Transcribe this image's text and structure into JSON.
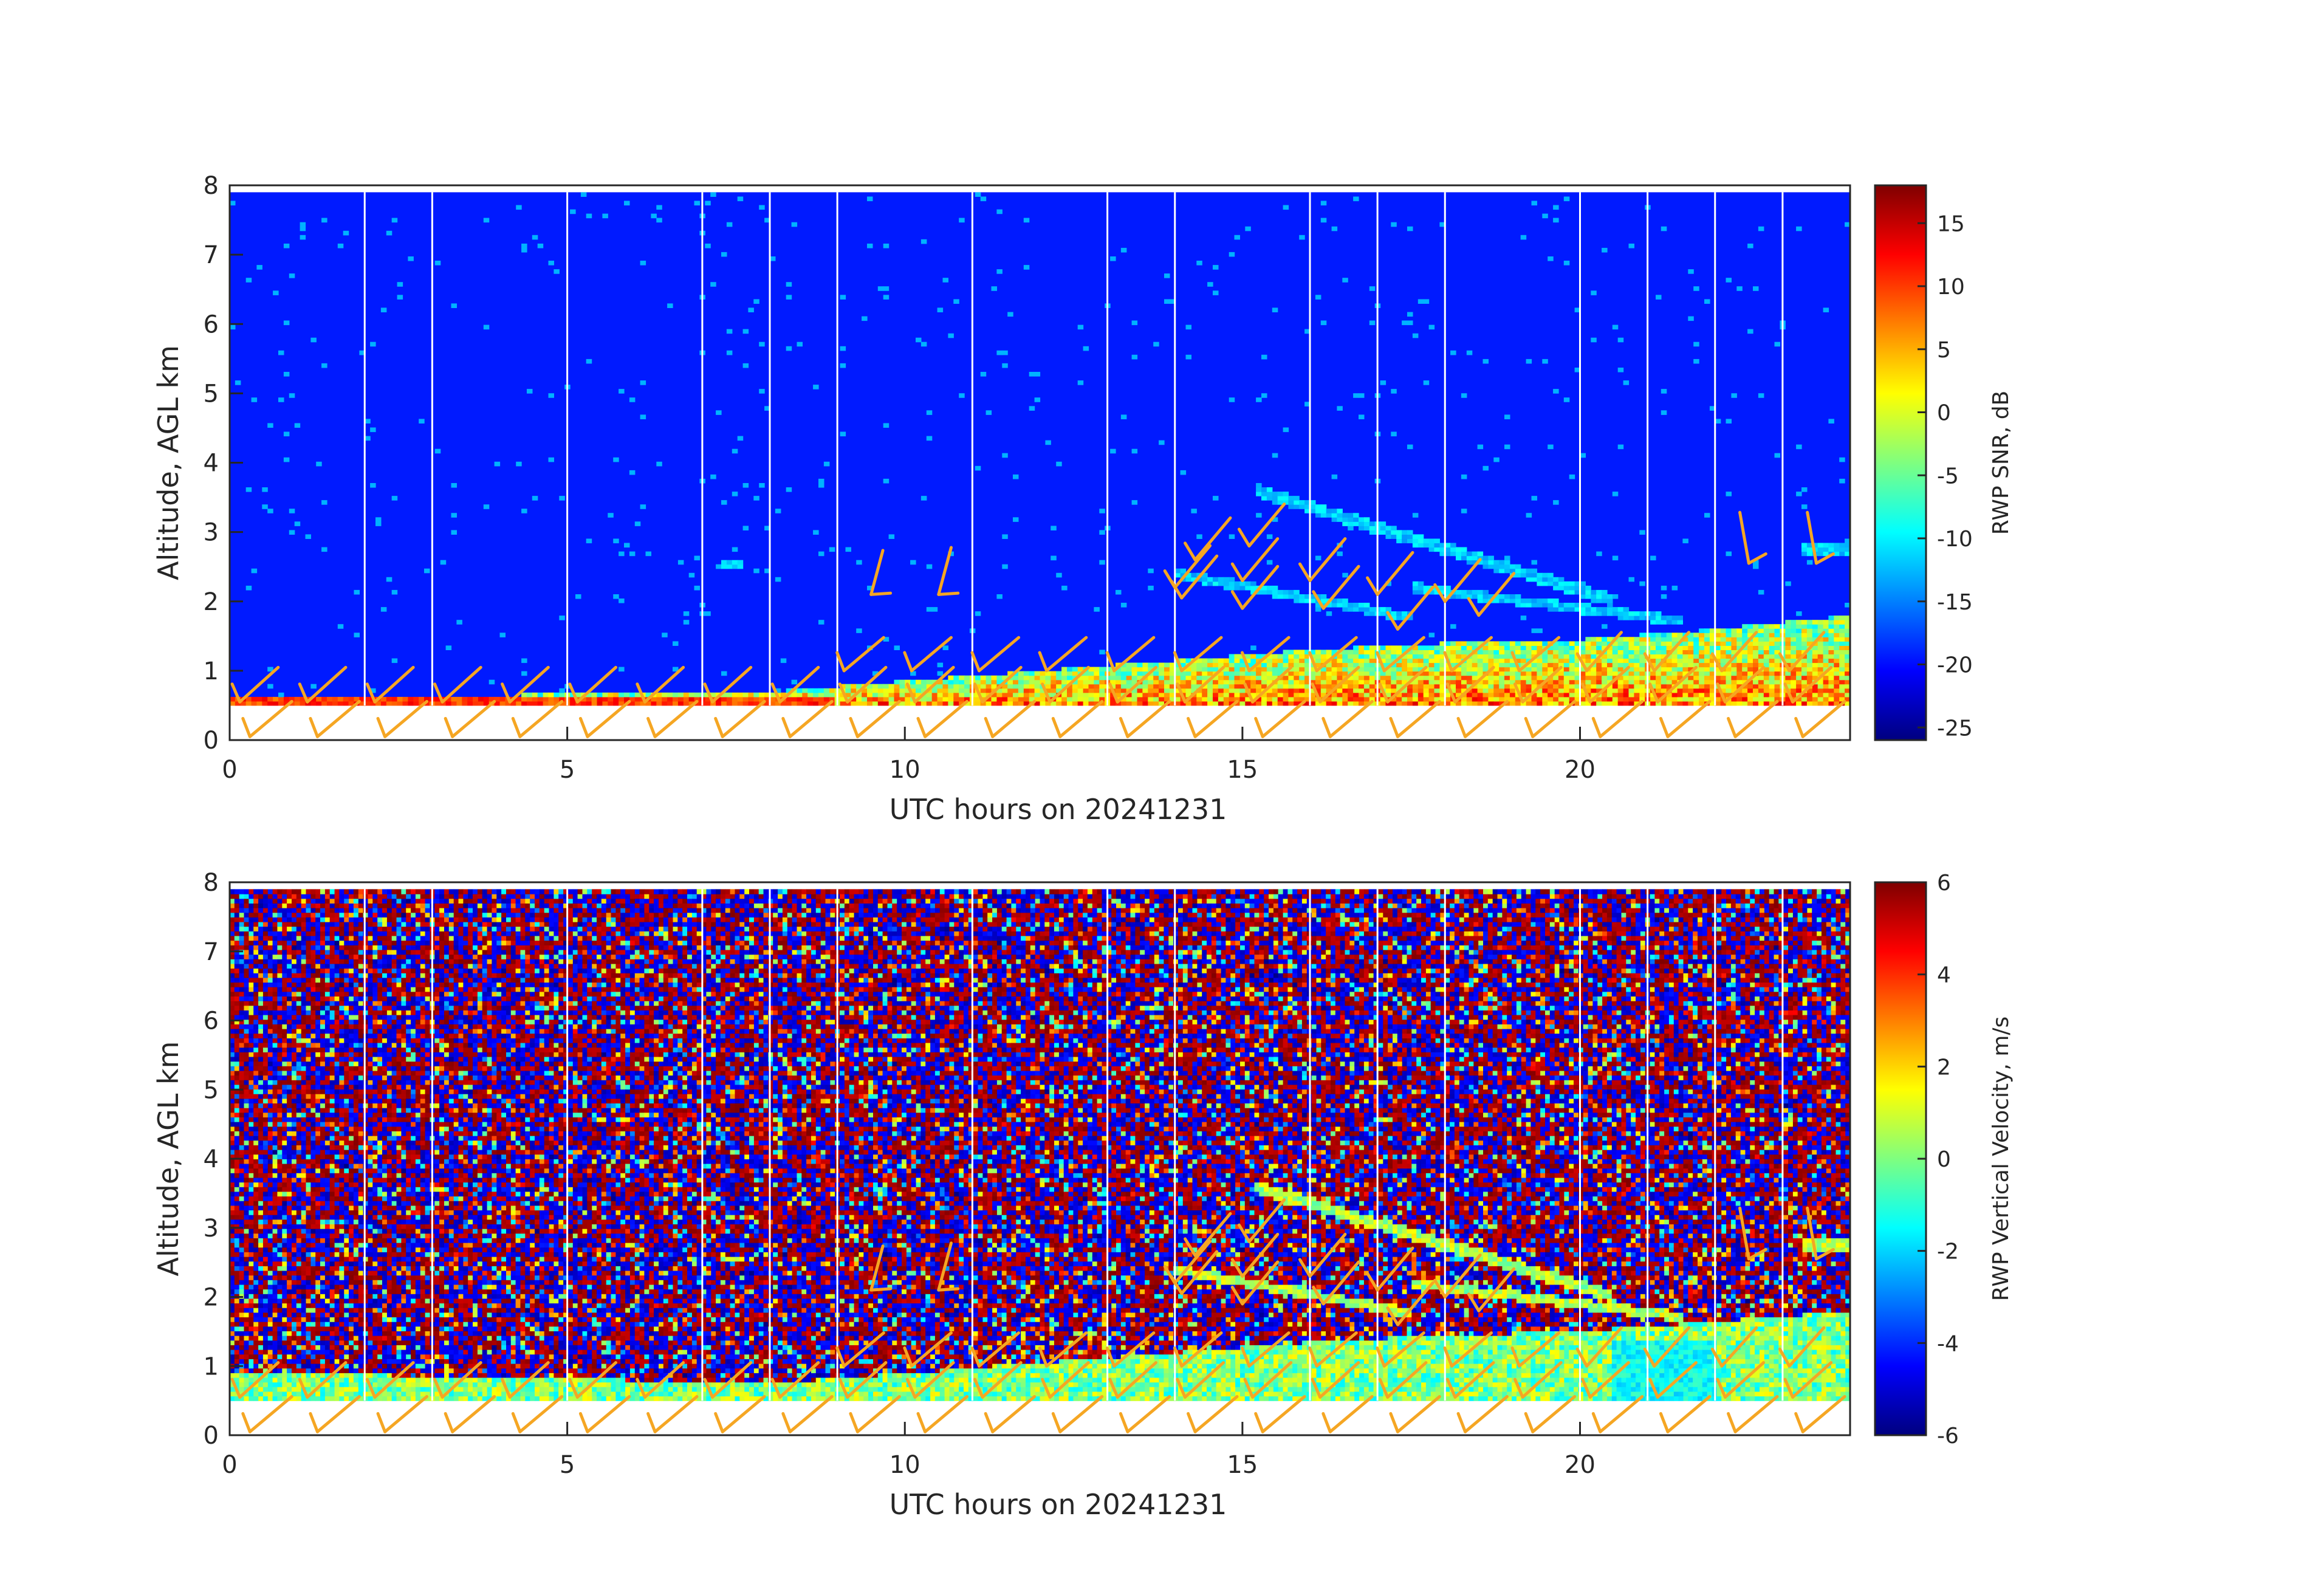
{
  "chart_data": [
    {
      "type": "heatmap",
      "field": "snr",
      "xlabel": "UTC hours on 20241231",
      "ylabel": "Altitude, AGL km",
      "xlim": [
        0,
        24
      ],
      "ylim": [
        0,
        8
      ],
      "xticks": [
        "0",
        "5",
        "10",
        "15",
        "20"
      ],
      "yticks": [
        "0",
        "1",
        "2",
        "3",
        "4",
        "5",
        "6",
        "7",
        "8"
      ],
      "colorbar": {
        "label": "RWP SNR, dB",
        "colormap": "jet",
        "range": [
          -26,
          18
        ],
        "ticks": [
          "15",
          "10",
          "5",
          "0",
          "-5",
          "-10",
          "-15",
          "-20",
          "-25"
        ]
      },
      "wind_barb_color": "#f5a623",
      "data_bottom_km": 0.5,
      "data_top_km": 7.9,
      "time_gap_lines_hours": [
        2,
        3,
        5,
        7,
        8,
        9,
        11,
        13,
        14,
        16,
        17,
        18,
        20,
        21,
        22,
        23
      ],
      "boundary_layer_top_km": [
        [
          0,
          0.65
        ],
        [
          4,
          0.65
        ],
        [
          8,
          0.7
        ],
        [
          10,
          0.85
        ],
        [
          12,
          1.0
        ],
        [
          14,
          1.15
        ],
        [
          16,
          1.3
        ],
        [
          18,
          1.4
        ],
        [
          20,
          1.45
        ],
        [
          22,
          1.6
        ],
        [
          24,
          1.8
        ]
      ]
    },
    {
      "type": "heatmap",
      "field": "velocity",
      "xlabel": "UTC hours on 20241231",
      "ylabel": "Altitude, AGL km",
      "xlim": [
        0,
        24
      ],
      "ylim": [
        0,
        8
      ],
      "xticks": [
        "0",
        "5",
        "10",
        "15",
        "20"
      ],
      "yticks": [
        "0",
        "1",
        "2",
        "3",
        "4",
        "5",
        "6",
        "7",
        "8"
      ],
      "colorbar": {
        "label": "RWP Vertical Velocity, m/s",
        "colormap": "jet",
        "range": [
          -6,
          6
        ],
        "ticks": [
          "6",
          "4",
          "2",
          "0",
          "-2",
          "-4",
          "-6"
        ]
      },
      "wind_barb_color": "#f5a623",
      "data_bottom_km": 0.5,
      "data_top_km": 7.9,
      "time_gap_lines_hours": [
        2,
        3,
        5,
        7,
        8,
        9,
        11,
        13,
        14,
        16,
        17,
        18,
        20,
        21,
        22,
        23
      ],
      "boundary_layer_top_km": [
        [
          0,
          0.9
        ],
        [
          4,
          0.85
        ],
        [
          8,
          0.75
        ],
        [
          10,
          0.9
        ],
        [
          12,
          1.05
        ],
        [
          14,
          1.2
        ],
        [
          16,
          1.35
        ],
        [
          18,
          1.45
        ],
        [
          20,
          1.5
        ],
        [
          22,
          1.65
        ],
        [
          24,
          1.8
        ]
      ]
    }
  ]
}
